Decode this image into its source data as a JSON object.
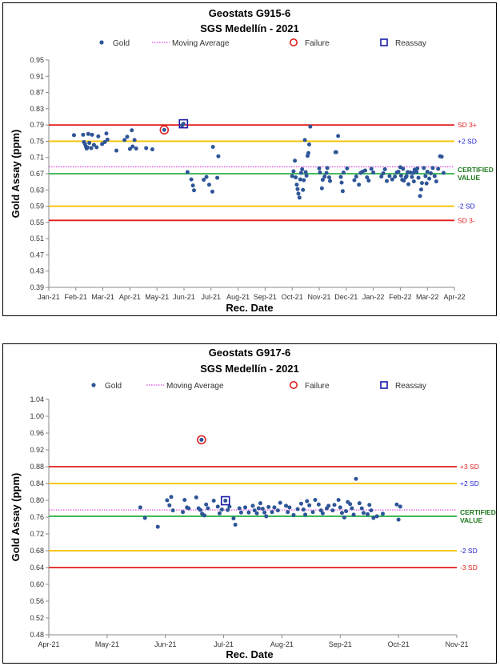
{
  "legend_labels": {
    "gold": "Gold",
    "moving_average": "Moving Average",
    "failure": "Failure",
    "reassay": "Reassay"
  },
  "colors": {
    "gold": "#2E5597",
    "moving_average": "#E040E0",
    "failure": "#E02020",
    "reassay": "#1A1AA8",
    "sd3": "#E21B1B",
    "sd2": "#F5C000",
    "certified": "#2DB24A",
    "label_red": "#E21B1B",
    "label_blue": "#1A1AD0",
    "label_green": "#1F7A1F"
  },
  "chart_data": [
    {
      "type": "scatter",
      "title": "Geostats G915-6",
      "subtitle": "SGS Medellín - 2021",
      "xlabel": "Rec. Date",
      "ylabel": "Gold Assay (ppm)",
      "x_ticks": [
        "Jan-21",
        "Feb-21",
        "Mar-21",
        "Apr-21",
        "May-21",
        "Jun-21",
        "Jul-21",
        "Aug-21",
        "Sep-21",
        "Oct-21",
        "Nov-21",
        "Dec-21",
        "Jan-22",
        "Feb-22",
        "Mar-22",
        "Apr-22"
      ],
      "xlim": [
        0,
        15
      ],
      "y_ticks": [
        "0.95",
        "0.91",
        "0.87",
        "0.83",
        "0.79",
        "0.75",
        "0.71",
        "0.67",
        "0.63",
        "0.59",
        "0.55",
        "0.51",
        "0.47",
        "0.43",
        "0.39"
      ],
      "ylim": [
        0.39,
        0.95
      ],
      "legend": "top",
      "grid": false,
      "reference_lines": [
        {
          "key": "sd3_upper",
          "value": 0.79,
          "label": "SD 3+",
          "style": "sd3"
        },
        {
          "key": "sd2_upper",
          "value": 0.75,
          "label": "+2 SD",
          "style": "sd2"
        },
        {
          "key": "certified",
          "value": 0.67,
          "label": "CERTIFIED VALUE",
          "style": "certified"
        },
        {
          "key": "sd2_lower",
          "value": 0.59,
          "label": "-2 SD",
          "style": "sd2"
        },
        {
          "key": "sd3_lower",
          "value": 0.555,
          "label": "SD 3-",
          "style": "sd3"
        }
      ],
      "moving_average": 0.687,
      "failures": [
        [
          4.27,
          0.778
        ]
      ],
      "reassays": [
        [
          4.98,
          0.793
        ]
      ],
      "points": [
        [
          0.93,
          0.765
        ],
        [
          1.27,
          0.766
        ],
        [
          1.3,
          0.748
        ],
        [
          1.34,
          0.743
        ],
        [
          1.37,
          0.737
        ],
        [
          1.4,
          0.732
        ],
        [
          1.43,
          0.735
        ],
        [
          1.46,
          0.768
        ],
        [
          1.5,
          0.746
        ],
        [
          1.57,
          0.733
        ],
        [
          1.6,
          0.766
        ],
        [
          1.67,
          0.741
        ],
        [
          1.77,
          0.735
        ],
        [
          1.83,
          0.762
        ],
        [
          1.97,
          0.743
        ],
        [
          2.07,
          0.748
        ],
        [
          2.13,
          0.769
        ],
        [
          2.17,
          0.754
        ],
        [
          2.5,
          0.727
        ],
        [
          2.8,
          0.753
        ],
        [
          2.9,
          0.761
        ],
        [
          3.0,
          0.731
        ],
        [
          3.07,
          0.777
        ],
        [
          3.1,
          0.737
        ],
        [
          3.17,
          0.753
        ],
        [
          3.23,
          0.732
        ],
        [
          3.6,
          0.733
        ],
        [
          3.83,
          0.73
        ],
        [
          4.93,
          0.789
        ],
        [
          5.13,
          0.674
        ],
        [
          5.27,
          0.656
        ],
        [
          5.33,
          0.641
        ],
        [
          5.37,
          0.629
        ],
        [
          5.73,
          0.655
        ],
        [
          5.83,
          0.662
        ],
        [
          5.93,
          0.643
        ],
        [
          6.05,
          0.626
        ],
        [
          6.07,
          0.736
        ],
        [
          6.23,
          0.66
        ],
        [
          6.27,
          0.713
        ],
        [
          9.0,
          0.664
        ],
        [
          9.05,
          0.676
        ],
        [
          9.1,
          0.702
        ],
        [
          9.13,
          0.661
        ],
        [
          9.17,
          0.643
        ],
        [
          9.2,
          0.632
        ],
        [
          9.23,
          0.621
        ],
        [
          9.27,
          0.611
        ],
        [
          9.3,
          0.656
        ],
        [
          9.33,
          0.672
        ],
        [
          9.37,
          0.681
        ],
        [
          9.4,
          0.63
        ],
        [
          9.43,
          0.654
        ],
        [
          9.47,
          0.753
        ],
        [
          9.5,
          0.674
        ],
        [
          9.53,
          0.665
        ],
        [
          9.57,
          0.714
        ],
        [
          9.6,
          0.721
        ],
        [
          9.63,
          0.742
        ],
        [
          9.67,
          0.786
        ],
        [
          10.0,
          0.683
        ],
        [
          10.03,
          0.673
        ],
        [
          10.1,
          0.634
        ],
        [
          10.13,
          0.655
        ],
        [
          10.2,
          0.663
        ],
        [
          10.27,
          0.672
        ],
        [
          10.3,
          0.684
        ],
        [
          10.37,
          0.661
        ],
        [
          10.4,
          0.652
        ],
        [
          10.6,
          0.723
        ],
        [
          10.63,
          0.723
        ],
        [
          10.7,
          0.763
        ],
        [
          10.8,
          0.662
        ],
        [
          10.83,
          0.648
        ],
        [
          10.87,
          0.627
        ],
        [
          10.9,
          0.673
        ],
        [
          11.03,
          0.683
        ],
        [
          11.3,
          0.654
        ],
        [
          11.37,
          0.663
        ],
        [
          11.47,
          0.643
        ],
        [
          11.53,
          0.672
        ],
        [
          11.6,
          0.675
        ],
        [
          11.7,
          0.678
        ],
        [
          11.77,
          0.661
        ],
        [
          11.83,
          0.653
        ],
        [
          11.93,
          0.682
        ],
        [
          12.0,
          0.673
        ],
        [
          12.3,
          0.663
        ],
        [
          12.37,
          0.671
        ],
        [
          12.43,
          0.681
        ],
        [
          12.5,
          0.652
        ],
        [
          12.6,
          0.664
        ],
        [
          12.7,
          0.656
        ],
        [
          12.8,
          0.663
        ],
        [
          12.87,
          0.673
        ],
        [
          12.93,
          0.675
        ],
        [
          13.0,
          0.686
        ],
        [
          13.03,
          0.665
        ],
        [
          13.1,
          0.682
        ],
        [
          13.13,
          0.653
        ],
        [
          13.2,
          0.661
        ],
        [
          13.27,
          0.674
        ],
        [
          13.3,
          0.644
        ],
        [
          13.37,
          0.673
        ],
        [
          13.43,
          0.662
        ],
        [
          13.5,
          0.651
        ],
        [
          13.53,
          0.68
        ],
        [
          13.6,
          0.674
        ],
        [
          13.67,
          0.66
        ],
        [
          13.73,
          0.615
        ],
        [
          13.8,
          0.647
        ],
        [
          13.87,
          0.684
        ],
        [
          13.93,
          0.664
        ],
        [
          14.0,
          0.675
        ],
        [
          14.07,
          0.658
        ],
        [
          14.13,
          0.671
        ],
        [
          14.2,
          0.684
        ],
        [
          14.27,
          0.664
        ],
        [
          14.33,
          0.651
        ],
        [
          14.4,
          0.682
        ],
        [
          14.47,
          0.713
        ],
        [
          14.53,
          0.712
        ],
        [
          14.6,
          0.672
        ],
        [
          13.77,
          0.631
        ],
        [
          13.63,
          0.683
        ],
        [
          13.97,
          0.646
        ],
        [
          13.47,
          0.672
        ],
        [
          13.23,
          0.664
        ],
        [
          13.07,
          0.655
        ]
      ]
    },
    {
      "type": "scatter",
      "title": "Geostats G917-6",
      "subtitle": "SGS Medellín - 2021",
      "xlabel": "Rec. Date",
      "ylabel": "Gold Assay (ppm)",
      "x_ticks": [
        "Apr-21",
        "May-21",
        "Jun-21",
        "Jul-21",
        "Aug-21",
        "Sep-21",
        "Oct-21",
        "Nov-21"
      ],
      "xlim": [
        0,
        7
      ],
      "y_ticks": [
        "1.04",
        "1.00",
        "0.96",
        "0.92",
        "0.88",
        "0.84",
        "0.80",
        "0.76",
        "0.72",
        "0.68",
        "0.64",
        "0.60",
        "0.56",
        "0.52",
        "0.48"
      ],
      "ylim": [
        0.48,
        1.04
      ],
      "legend": "top",
      "grid": false,
      "reference_lines": [
        {
          "key": "sd3_upper",
          "value": 0.88,
          "label": "+3 SD",
          "style": "sd3"
        },
        {
          "key": "sd2_upper",
          "value": 0.84,
          "label": "+2 SD",
          "style": "sd2"
        },
        {
          "key": "certified",
          "value": 0.762,
          "label": "CERTIFIED VALUE",
          "style": "certified"
        },
        {
          "key": "sd2_lower",
          "value": 0.68,
          "label": "-2 SD",
          "style": "sd2"
        },
        {
          "key": "sd3_lower",
          "value": 0.64,
          "label": "-3 SD",
          "style": "sd3"
        }
      ],
      "moving_average": 0.777,
      "failures": [
        [
          2.62,
          0.944
        ]
      ],
      "reassays": [
        [
          3.03,
          0.799
        ]
      ],
      "points": [
        [
          1.57,
          0.783
        ],
        [
          1.65,
          0.758
        ],
        [
          1.87,
          0.737
        ],
        [
          2.03,
          0.8
        ],
        [
          2.07,
          0.788
        ],
        [
          2.1,
          0.808
        ],
        [
          2.13,
          0.776
        ],
        [
          2.3,
          0.772
        ],
        [
          2.33,
          0.801
        ],
        [
          2.37,
          0.783
        ],
        [
          2.4,
          0.781
        ],
        [
          2.53,
          0.807
        ],
        [
          2.57,
          0.781
        ],
        [
          2.6,
          0.777
        ],
        [
          2.63,
          0.768
        ],
        [
          2.67,
          0.764
        ],
        [
          2.7,
          0.79
        ],
        [
          2.73,
          0.781
        ],
        [
          2.9,
          0.785
        ],
        [
          2.93,
          0.769
        ],
        [
          2.97,
          0.778
        ],
        [
          3.07,
          0.777
        ],
        [
          3.1,
          0.785
        ],
        [
          3.17,
          0.757
        ],
        [
          3.2,
          0.742
        ],
        [
          3.27,
          0.781
        ],
        [
          3.3,
          0.771
        ],
        [
          3.37,
          0.783
        ],
        [
          3.43,
          0.771
        ],
        [
          3.5,
          0.787
        ],
        [
          3.53,
          0.776
        ],
        [
          3.57,
          0.769
        ],
        [
          3.63,
          0.793
        ],
        [
          3.67,
          0.78
        ],
        [
          3.7,
          0.771
        ],
        [
          3.73,
          0.762
        ],
        [
          3.77,
          0.784
        ],
        [
          3.83,
          0.772
        ],
        [
          3.87,
          0.783
        ],
        [
          3.93,
          0.776
        ],
        [
          3.97,
          0.794
        ],
        [
          4.07,
          0.787
        ],
        [
          4.1,
          0.772
        ],
        [
          4.13,
          0.783
        ],
        [
          4.2,
          0.765
        ],
        [
          4.27,
          0.779
        ],
        [
          4.33,
          0.792
        ],
        [
          4.37,
          0.778
        ],
        [
          4.4,
          0.766
        ],
        [
          4.47,
          0.788
        ],
        [
          4.53,
          0.772
        ],
        [
          4.57,
          0.801
        ],
        [
          4.63,
          0.79
        ],
        [
          4.67,
          0.776
        ],
        [
          4.7,
          0.769
        ],
        [
          4.77,
          0.781
        ],
        [
          4.8,
          0.787
        ],
        [
          4.87,
          0.776
        ],
        [
          4.9,
          0.789
        ],
        [
          4.97,
          0.801
        ],
        [
          5.0,
          0.783
        ],
        [
          5.03,
          0.77
        ],
        [
          5.07,
          0.759
        ],
        [
          5.1,
          0.774
        ],
        [
          5.17,
          0.791
        ],
        [
          5.2,
          0.781
        ],
        [
          5.23,
          0.766
        ],
        [
          5.27,
          0.851
        ],
        [
          5.33,
          0.793
        ],
        [
          5.37,
          0.781
        ],
        [
          5.4,
          0.77
        ],
        [
          5.47,
          0.767
        ],
        [
          5.5,
          0.789
        ],
        [
          5.53,
          0.776
        ],
        [
          5.57,
          0.758
        ],
        [
          5.63,
          0.762
        ],
        [
          5.73,
          0.768
        ],
        [
          5.97,
          0.79
        ],
        [
          6.0,
          0.754
        ],
        [
          6.03,
          0.785
        ],
        [
          2.83,
          0.799
        ],
        [
          3.6,
          0.781
        ],
        [
          4.43,
          0.798
        ],
        [
          5.13,
          0.796
        ]
      ]
    }
  ]
}
